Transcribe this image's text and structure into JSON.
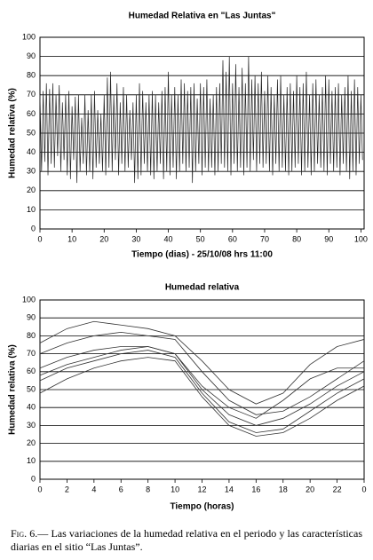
{
  "chart_data": [
    {
      "type": "line",
      "title": "Humedad Relativa en \"Las Juntas\"",
      "xlabel": "Tiempo (dias) - 25/10/08 hrs 11:00",
      "ylabel": "Humedad relativa (%)",
      "xlim": [
        0,
        101
      ],
      "ylim": [
        0,
        100
      ],
      "xticks": [
        0,
        10,
        20,
        30,
        40,
        50,
        60,
        70,
        80,
        90,
        100
      ],
      "yticks": [
        0,
        10,
        20,
        30,
        40,
        50,
        60,
        70,
        80,
        90,
        100
      ],
      "grid": true,
      "x": [
        0,
        0.5,
        1,
        1.5,
        2,
        2.5,
        3,
        3.5,
        4,
        4.5,
        5,
        5.5,
        6,
        6.5,
        7,
        7.5,
        8,
        8.5,
        9,
        9.5,
        10,
        10.5,
        11,
        11.5,
        12,
        12.5,
        13,
        13.5,
        14,
        14.5,
        15,
        15.5,
        16,
        16.5,
        17,
        17.5,
        18,
        18.5,
        19,
        19.5,
        20,
        20.5,
        21,
        21.5,
        22,
        22.5,
        23,
        23.5,
        24,
        24.5,
        25,
        25.5,
        26,
        26.5,
        27,
        27.5,
        28,
        28.5,
        29,
        29.5,
        30,
        30.5,
        31,
        31.5,
        32,
        32.5,
        33,
        33.5,
        34,
        34.5,
        35,
        35.5,
        36,
        36.5,
        37,
        37.5,
        38,
        38.5,
        39,
        39.5,
        40,
        40.5,
        41,
        41.5,
        42,
        42.5,
        43,
        43.5,
        44,
        44.5,
        45,
        45.5,
        46,
        46.5,
        47,
        47.5,
        48,
        48.5,
        49,
        49.5,
        50,
        50.5,
        51,
        51.5,
        52,
        52.5,
        53,
        53.5,
        54,
        54.5,
        55,
        55.5,
        56,
        56.5,
        57,
        57.5,
        58,
        58.5,
        59,
        59.5,
        60,
        60.5,
        61,
        61.5,
        62,
        62.5,
        63,
        63.5,
        64,
        64.5,
        65,
        65.5,
        66,
        66.5,
        67,
        67.5,
        68,
        68.5,
        69,
        69.5,
        70,
        70.5,
        71,
        71.5,
        72,
        72.5,
        73,
        73.5,
        74,
        74.5,
        75,
        75.5,
        76,
        76.5,
        77,
        77.5,
        78,
        78.5,
        79,
        79.5,
        80,
        80.5,
        81,
        81.5,
        82,
        82.5,
        83,
        83.5,
        84,
        84.5,
        85,
        85.5,
        86,
        86.5,
        87,
        87.5,
        88,
        88.5,
        89,
        89.5,
        90,
        90.5,
        91,
        91.5,
        92,
        92.5,
        93,
        93.5,
        94,
        94.5,
        95,
        95.5,
        96,
        96.5,
        97,
        97.5,
        98,
        98.5,
        99,
        99.5,
        100,
        100.5
      ],
      "series": [
        {
          "color": "#222222",
          "values": [
            70,
            30,
            72,
            35,
            76,
            28,
            73,
            34,
            76,
            32,
            70,
            38,
            75,
            30,
            66,
            36,
            70,
            28,
            72,
            26,
            64,
            36,
            69,
            24,
            70,
            30,
            58,
            34,
            70,
            28,
            62,
            30,
            70,
            26,
            72,
            32,
            62,
            34,
            60,
            30,
            70,
            28,
            79,
            32,
            82,
            30,
            70,
            36,
            76,
            28,
            66,
            34,
            74,
            30,
            70,
            32,
            62,
            36,
            66,
            24,
            70,
            26,
            76,
            28,
            72,
            34,
            66,
            30,
            70,
            28,
            72,
            26,
            70,
            30,
            66,
            34,
            72,
            26,
            74,
            30,
            82,
            28,
            70,
            32,
            74,
            26,
            70,
            30,
            78,
            34,
            76,
            30,
            72,
            32,
            74,
            24,
            76,
            30,
            68,
            34,
            76,
            28,
            74,
            32,
            78,
            30,
            68,
            32,
            70,
            28,
            74,
            30,
            76,
            34,
            88,
            32,
            82,
            30,
            90,
            28,
            76,
            34,
            86,
            30,
            74,
            32,
            84,
            28,
            76,
            32,
            90,
            30,
            78,
            36,
            80,
            30,
            76,
            34,
            82,
            32,
            72,
            34,
            80,
            30,
            74,
            28,
            70,
            34,
            78,
            30,
            80,
            32,
            70,
            30,
            74,
            28,
            76,
            30,
            72,
            32,
            80,
            34,
            74,
            28,
            76,
            30,
            82,
            32,
            70,
            28,
            76,
            30,
            78,
            34,
            70,
            32,
            74,
            30,
            80,
            28,
            78,
            34,
            72,
            30,
            74,
            32,
            76,
            28,
            70,
            34,
            74,
            30,
            80,
            26,
            72,
            30,
            78,
            28,
            74,
            34,
            70,
            36
          ]
        }
      ]
    },
    {
      "type": "line",
      "title": "Humedad relativa",
      "xlabel": "Tiempo (horas)",
      "ylabel": "Humedad relativa (%)",
      "xlim": [
        0,
        24
      ],
      "ylim": [
        0,
        100
      ],
      "xticks": [
        0,
        2,
        4,
        6,
        8,
        10,
        12,
        14,
        16,
        18,
        20,
        22,
        {
          "value": 24,
          "label": "0"
        }
      ],
      "yticks": [
        0,
        10,
        20,
        30,
        40,
        50,
        60,
        70,
        80,
        90,
        100
      ],
      "grid": true,
      "x": [
        0,
        2,
        4,
        6,
        8,
        10,
        12,
        14,
        16,
        18,
        20,
        22,
        24
      ],
      "series": [
        {
          "color": "#333333",
          "values": [
            62,
            68,
            72,
            74,
            74,
            70,
            50,
            36,
            30,
            34,
            42,
            52,
            60
          ]
        },
        {
          "color": "#333333",
          "values": [
            55,
            62,
            66,
            70,
            72,
            68,
            48,
            32,
            26,
            28,
            38,
            48,
            56
          ]
        },
        {
          "color": "#333333",
          "values": [
            70,
            76,
            80,
            82,
            80,
            78,
            60,
            44,
            36,
            38,
            46,
            56,
            66
          ]
        },
        {
          "color": "#333333",
          "values": [
            48,
            56,
            62,
            66,
            68,
            66,
            46,
            30,
            24,
            26,
            34,
            44,
            52
          ]
        },
        {
          "color": "#333333",
          "values": [
            76,
            84,
            88,
            86,
            84,
            80,
            66,
            50,
            42,
            48,
            64,
            74,
            78
          ]
        },
        {
          "color": "#333333",
          "values": [
            58,
            64,
            68,
            72,
            74,
            70,
            52,
            40,
            34,
            44,
            56,
            62,
            62
          ]
        }
      ]
    }
  ],
  "caption_label": "Fig. 6.—",
  "caption": "Las variaciones de la humedad relativa en el periodo y las características diarias en el sitio “Las Juntas”."
}
